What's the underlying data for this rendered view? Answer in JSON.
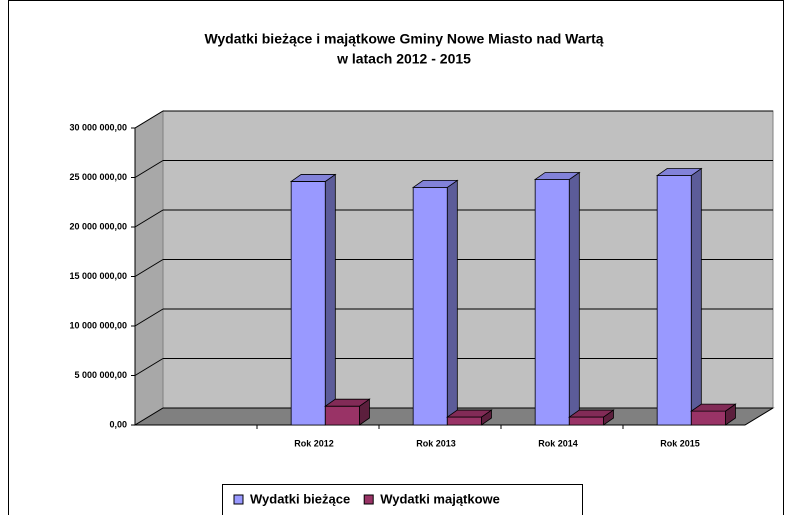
{
  "chart_data": {
    "type": "bar3d",
    "title": [
      "Wydatki bieżące i majątkowe Gminy Nowe Miasto nad Wartą",
      "w latach 2012 - 2015"
    ],
    "categories": [
      null,
      "Rok 2012",
      "Rok 2013",
      "Rok 2014",
      "Rok 2015"
    ],
    "series": [
      {
        "name": "Wydatki bieżące",
        "color": "#9999ff",
        "values": [
          null,
          24600000,
          24000000,
          24800000,
          25200000
        ]
      },
      {
        "name": "Wydatki majątkowe",
        "color": "#993366",
        "values": [
          null,
          1900000,
          800000,
          800000,
          1400000
        ]
      }
    ],
    "ylim": [
      0,
      30000000
    ],
    "yticks": [
      {
        "value": 0,
        "label": "0,00"
      },
      {
        "value": 5000000,
        "label": "5 000 000,00"
      },
      {
        "value": 10000000,
        "label": "10 000 000,00"
      },
      {
        "value": 15000000,
        "label": "15 000 000,00"
      },
      {
        "value": 20000000,
        "label": "20 000 000,00"
      },
      {
        "value": 25000000,
        "label": "25 000 000,00"
      },
      {
        "value": 30000000,
        "label": "30 000 000,00"
      }
    ],
    "grid": true,
    "legend": "bottom"
  }
}
